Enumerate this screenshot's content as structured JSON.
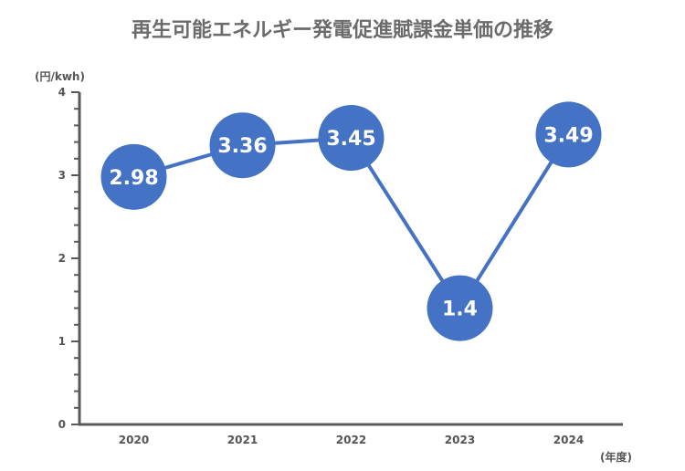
{
  "chart_data": {
    "type": "line",
    "title": "再生可能エネルギー発電促進賦課金単価の推移",
    "ylabel": "(円/kwh)",
    "xlabel": "(年度)",
    "ylim": [
      0,
      4
    ],
    "yticks": [
      "0",
      "1",
      "2",
      "3",
      "4"
    ],
    "categories": [
      "2020",
      "2021",
      "2022",
      "2023",
      "2024"
    ],
    "values": [
      2.98,
      3.36,
      3.45,
      1.4,
      3.49
    ],
    "data_labels": [
      "2.98",
      "3.36",
      "3.45",
      "1.4",
      "3.49"
    ],
    "colors": {
      "series": "#4472c4",
      "axis": "#595959",
      "title": "#6b6b6b",
      "label": "#ffffff"
    }
  }
}
